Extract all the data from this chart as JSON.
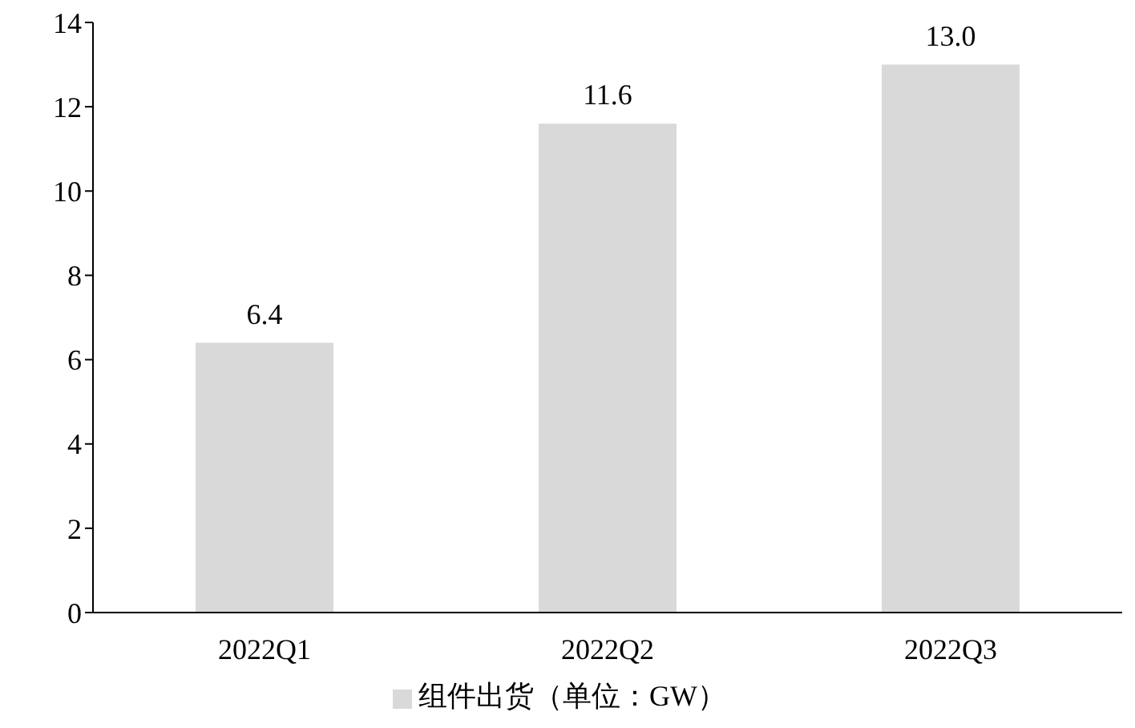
{
  "chart_data": {
    "type": "bar",
    "categories": [
      "2022Q1",
      "2022Q2",
      "2022Q3"
    ],
    "series": [
      {
        "name": "组件出货（单位：GW）",
        "color": "#d9d9d9",
        "values": [
          6.4,
          11.6,
          13.0
        ],
        "value_labels": [
          "6.4",
          "11.6",
          "13.0"
        ]
      }
    ],
    "ylim": [
      0,
      14
    ],
    "yticks": [
      0,
      2,
      4,
      6,
      8,
      10,
      12,
      14
    ],
    "grid": false,
    "legend": "bottom"
  }
}
